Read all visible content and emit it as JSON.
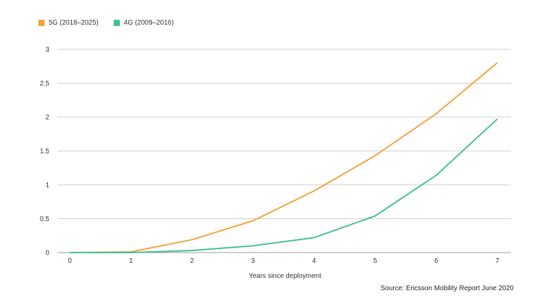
{
  "chart_data": {
    "type": "line",
    "x": [
      0,
      1,
      2,
      3,
      4,
      5,
      6,
      7
    ],
    "x_tick_labels": [
      "0",
      "1",
      "2",
      "3",
      "4",
      "5",
      "6",
      "7"
    ],
    "y_tick_values": [
      0,
      0.5,
      1,
      1.5,
      2,
      2.5,
      3
    ],
    "y_tick_labels": [
      "0",
      "0.5",
      "1",
      "1.5",
      "2",
      "2.5",
      "3"
    ],
    "xlabel": "Years since deployment",
    "ylabel": "",
    "xlim": [
      0,
      7
    ],
    "ylim": [
      0,
      3
    ],
    "grid": "horizontal",
    "legend_position": "top-left",
    "series": [
      {
        "name": "5G (2018–2025)",
        "color": "#F2A33A",
        "values": [
          0,
          0.01,
          0.19,
          0.47,
          0.91,
          1.43,
          2.05,
          2.8
        ]
      },
      {
        "name": "4G (2009–2016)",
        "color": "#3DC28F",
        "values": [
          0,
          0,
          0.03,
          0.1,
          0.22,
          0.54,
          1.14,
          1.97
        ]
      }
    ],
    "source": "Source: Ericsson Mobility Report June 2020"
  }
}
